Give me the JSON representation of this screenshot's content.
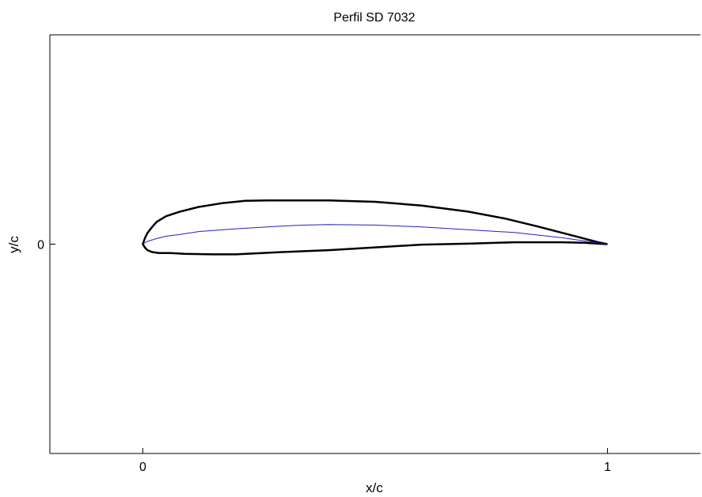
{
  "chart_data": {
    "type": "line",
    "title": "Perfil SD 7032",
    "xlabel": "x/c",
    "ylabel": "y/c",
    "xlim": [
      -0.2,
      1.2
    ],
    "ylim": [
      -0.45,
      0.45
    ],
    "xticks": [
      {
        "value": 0,
        "label": "0"
      },
      {
        "value": 1,
        "label": "1"
      }
    ],
    "yticks": [
      {
        "value": 0,
        "label": "0"
      }
    ],
    "grid": false,
    "series": [
      {
        "color": "#000000",
        "width": 2.5,
        "x": [
          1.0,
          0.98,
          0.95,
          0.9,
          0.85,
          0.78,
          0.7,
          0.6,
          0.5,
          0.4,
          0.3,
          0.27,
          0.22,
          0.17,
          0.12,
          0.08,
          0.05,
          0.03,
          0.02,
          0.01,
          0.005,
          0.0,
          0.005,
          0.01,
          0.02,
          0.035,
          0.06,
          0.09,
          0.15,
          0.2,
          0.3,
          0.4,
          0.5,
          0.6,
          0.7,
          0.8,
          0.9,
          0.95,
          0.98,
          1.0
        ],
        "y": [
          0.0,
          0.004,
          0.012,
          0.025,
          0.038,
          0.055,
          0.07,
          0.083,
          0.091,
          0.094,
          0.094,
          0.094,
          0.093,
          0.088,
          0.08,
          0.07,
          0.06,
          0.048,
          0.037,
          0.024,
          0.014,
          0.0,
          -0.008,
          -0.013,
          -0.017,
          -0.019,
          -0.019,
          -0.021,
          -0.022,
          -0.022,
          -0.017,
          -0.013,
          -0.007,
          -0.001,
          0.001,
          0.004,
          0.004,
          0.003,
          0.001,
          0.0
        ]
      },
      {
        "color": "#1f1fc8",
        "width": 1,
        "x": [
          0.0,
          0.01,
          0.03,
          0.05,
          0.08,
          0.12,
          0.2,
          0.3,
          0.35,
          0.4,
          0.5,
          0.6,
          0.7,
          0.8,
          0.9,
          0.95,
          1.0
        ],
        "y": [
          0.0,
          0.006,
          0.012,
          0.017,
          0.021,
          0.027,
          0.033,
          0.039,
          0.041,
          0.042,
          0.041,
          0.037,
          0.031,
          0.025,
          0.014,
          0.007,
          0.0
        ]
      }
    ]
  }
}
